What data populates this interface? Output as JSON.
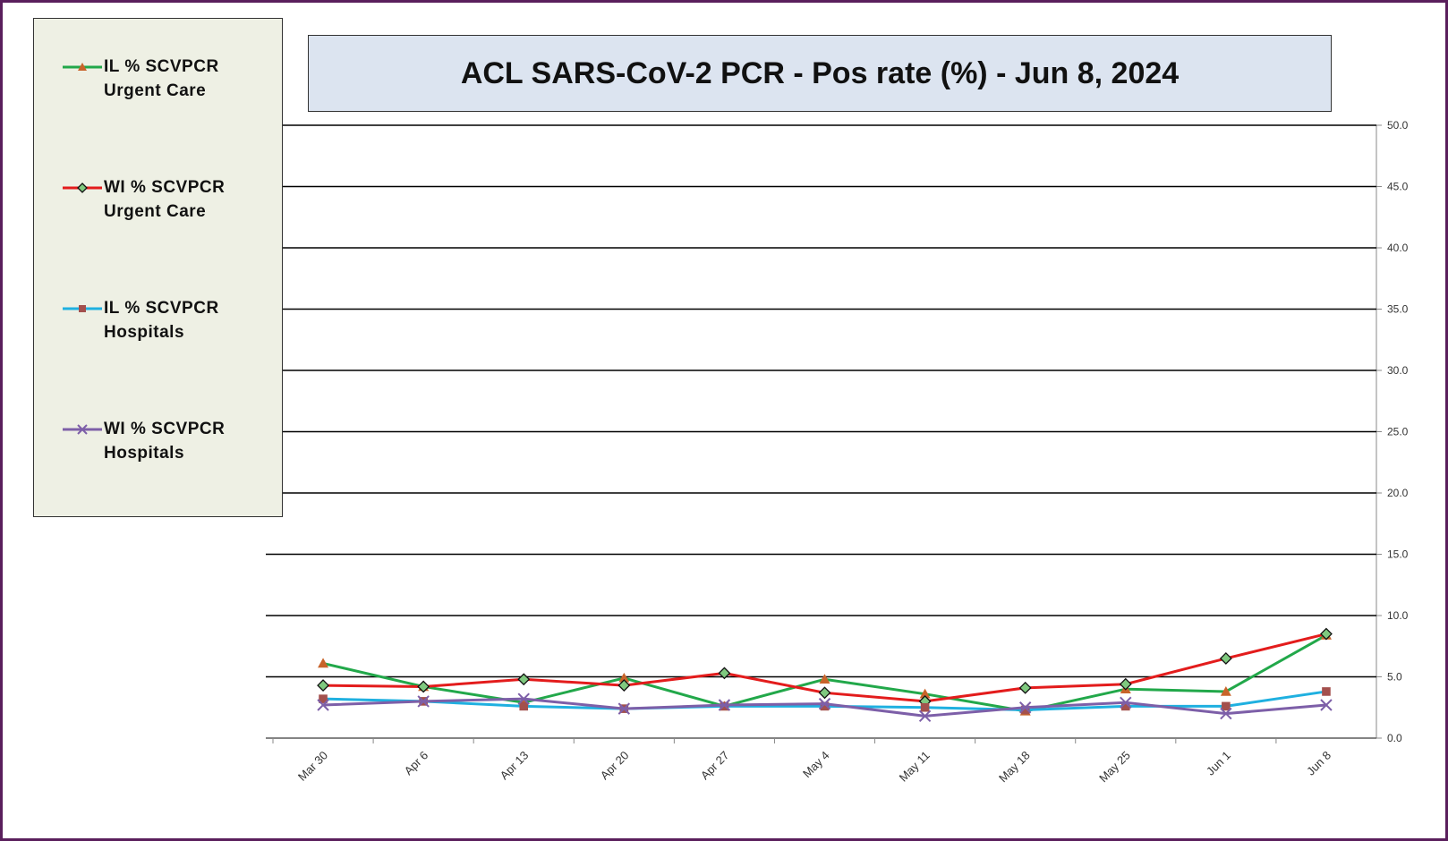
{
  "chart_data": {
    "type": "line",
    "title": "ACL SARS-CoV-2 PCR -  Pos rate (%) - Jun 8, 2024",
    "categories": [
      "Mar 30",
      "Apr 6",
      "Apr 13",
      "Apr 20",
      "Apr 27",
      "May 4",
      "May 11",
      "May 18",
      "May 25",
      "Jun 1",
      "Jun 8"
    ],
    "series": [
      {
        "name": "IL % SCVPCR Urgent Care",
        "color": "#22a84a",
        "marker": "triangle",
        "marker_color": "#c8642a",
        "values": [
          6.1,
          4.2,
          2.9,
          4.9,
          2.6,
          4.8,
          3.6,
          2.2,
          4.0,
          3.8,
          8.4
        ]
      },
      {
        "name": "WI % SCVPCR Urgent Care",
        "color": "#e31c1c",
        "marker": "diamond",
        "marker_color": "#7fc97f",
        "values": [
          4.3,
          4.2,
          4.8,
          4.3,
          5.3,
          3.7,
          3.0,
          4.1,
          4.4,
          6.5,
          8.5
        ]
      },
      {
        "name": "IL % SCVPCR Hospitals",
        "color": "#1fb0e0",
        "marker": "square",
        "marker_color": "#a3504d",
        "values": [
          3.2,
          3.0,
          2.6,
          2.4,
          2.6,
          2.6,
          2.5,
          2.3,
          2.6,
          2.6,
          3.8
        ]
      },
      {
        "name": "WI % SCVPCR Hospitals",
        "color": "#7d5fa8",
        "marker": "x",
        "marker_color": "#7d5fa8",
        "values": [
          2.7,
          3.0,
          3.2,
          2.4,
          2.7,
          2.8,
          1.8,
          2.5,
          2.9,
          2.0,
          2.7
        ]
      }
    ],
    "ylim": [
      0,
      50
    ],
    "yticks": [
      {
        "value": 0,
        "label": "0.0"
      },
      {
        "value": 5,
        "label": "5.0"
      },
      {
        "value": 10,
        "label": "10.0"
      },
      {
        "value": 15,
        "label": "15.0"
      },
      {
        "value": 20,
        "label": "20.0"
      },
      {
        "value": 25,
        "label": "25.0"
      },
      {
        "value": 30,
        "label": "30.0"
      },
      {
        "value": 35,
        "label": "35.0"
      },
      {
        "value": 40,
        "label": "40.0"
      },
      {
        "value": 45,
        "label": "45.0"
      },
      {
        "value": 50,
        "label": "50.0"
      }
    ],
    "grid": true
  }
}
